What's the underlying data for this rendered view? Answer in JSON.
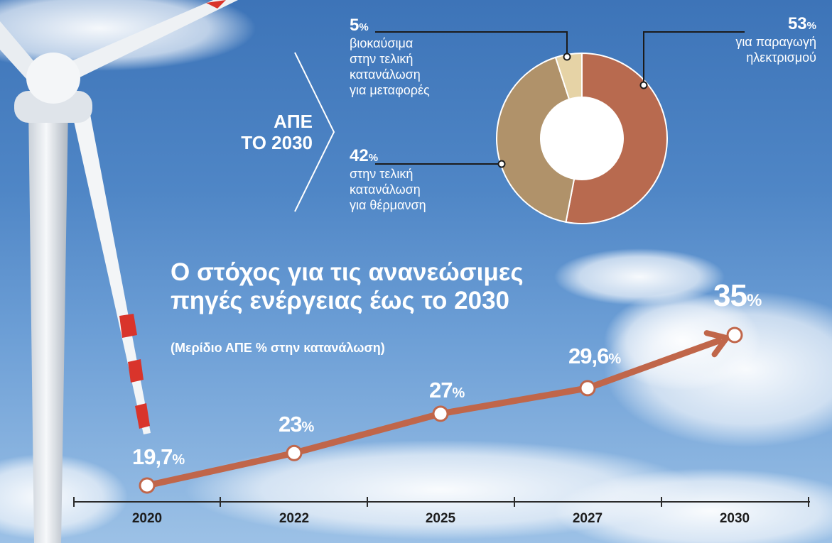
{
  "donut": {
    "title_line1": "ΑΠΕ",
    "title_line2": "ΤΟ 2030",
    "segments": [
      {
        "value": 53,
        "unit": "%",
        "label_line1": "για παραγωγή",
        "label_line2": "ηλεκτρισμού",
        "label_line3": "",
        "label_line4": "",
        "color": "#b86a4f"
      },
      {
        "value": 42,
        "unit": "%",
        "label_line1": "στην τελική",
        "label_line2": "κατανάλωση",
        "label_line3": "για θέρμανση",
        "label_line4": "",
        "color": "#b0926a"
      },
      {
        "value": 5,
        "unit": "%",
        "label_line1": "βιοκαύσιμα",
        "label_line2": "στην τελική",
        "label_line3": "κατανάλωση",
        "label_line4": "για μεταφορές",
        "color": "#e6d3a6"
      }
    ]
  },
  "chart_data": {
    "type": "line",
    "title": "Ο στόχος για τις ανανεώσιμες\nπηγές ενέργειας έως το 2030",
    "subtitle": "(Μερίδιο ΑΠΕ % στην κατανάλωση)",
    "x": [
      "2020",
      "2022",
      "2025",
      "2027",
      "2030"
    ],
    "series": [
      {
        "values": [
          19.7,
          23,
          27,
          29.6,
          35
        ],
        "labels": [
          "19,7",
          "23",
          "27",
          "29,6",
          "35"
        ],
        "unit": "%"
      }
    ],
    "line_color": "#c0664a",
    "grid": false,
    "legend": "none"
  }
}
